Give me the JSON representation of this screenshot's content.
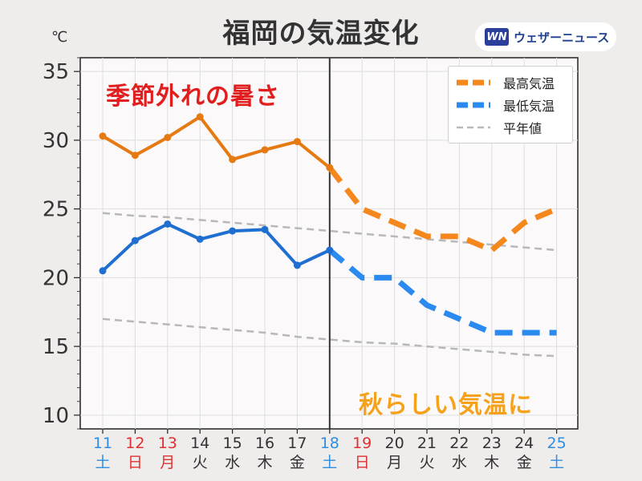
{
  "title": "福岡の気温変化",
  "unit_label": "℃",
  "logo": {
    "mark": "WN",
    "text": "ウェザーニュース"
  },
  "annotations": {
    "hot": "季節外れの暑さ",
    "cool": "秋らしい気温に"
  },
  "colors": {
    "max": "#e67a12",
    "max_forecast": "#f5881d",
    "min": "#1f6fd1",
    "min_forecast": "#2a8af0",
    "normal": "#b8b8b8",
    "saturday": "#2f8ee0",
    "sunday": "#e03030",
    "weekday": "#333333",
    "hot_text": "#e11d1d",
    "cool_text": "#f6a11a"
  },
  "chart_data": {
    "type": "line",
    "title": "福岡の気温変化",
    "xlabel": "",
    "ylabel": "℃",
    "ylim": [
      9,
      36
    ],
    "yticks": [
      10,
      15,
      20,
      25,
      30,
      35
    ],
    "grid": true,
    "legend_position": "top-right",
    "x": [
      "11",
      "12",
      "13",
      "14",
      "15",
      "16",
      "17",
      "18",
      "19",
      "20",
      "21",
      "22",
      "23",
      "24",
      "25"
    ],
    "weekdays": [
      "土",
      "日",
      "月",
      "火",
      "水",
      "木",
      "金",
      "土",
      "日",
      "月",
      "火",
      "水",
      "木",
      "金",
      "土"
    ],
    "day_types": [
      "sat",
      "sun",
      "holiday",
      "wd",
      "wd",
      "wd",
      "wd",
      "sat",
      "sun",
      "wd",
      "wd",
      "wd",
      "wd",
      "wd",
      "sat"
    ],
    "observed_until": "18",
    "series": [
      {
        "name": "最高気温",
        "key": "max",
        "values": [
          30.3,
          28.9,
          30.2,
          31.7,
          28.6,
          29.3,
          29.9,
          28.0,
          25,
          24,
          23,
          23,
          22,
          24,
          25
        ]
      },
      {
        "name": "最低気温",
        "key": "min",
        "values": [
          20.5,
          22.7,
          23.9,
          22.8,
          23.4,
          23.5,
          20.9,
          22.0,
          20,
          20,
          18,
          17,
          16,
          16,
          16
        ]
      },
      {
        "name": "平年値",
        "key": "normal_high",
        "values": [
          24.7,
          24.5,
          24.4,
          24.2,
          24.0,
          23.8,
          23.6,
          23.4,
          23.2,
          23.0,
          22.8,
          22.6,
          22.4,
          22.2,
          22.0
        ]
      },
      {
        "name": "平年値",
        "key": "normal_low",
        "values": [
          17.0,
          16.8,
          16.6,
          16.4,
          16.2,
          16.0,
          15.7,
          15.5,
          15.3,
          15.2,
          15.0,
          14.8,
          14.6,
          14.4,
          14.3
        ]
      }
    ]
  }
}
